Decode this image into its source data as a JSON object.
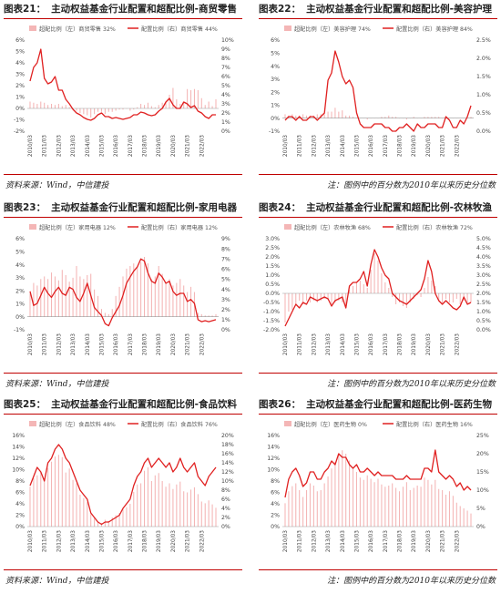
{
  "source_text": "资料来源：Wind，中信建投",
  "note_text": "注：图例中的百分数为2010年以来历史分位数",
  "figures": [
    {
      "label": "图表21：",
      "title": "主动权益基金行业配置和超配比例-商贸零售",
      "source_kind": "source"
    },
    {
      "label": "图表22：",
      "title": "主动权益基金行业配置和超配比例-美容护理",
      "source_kind": "note"
    },
    {
      "label": "图表23：",
      "title": "主动权益基金行业配置和超配比例-家用电器",
      "source_kind": "source"
    },
    {
      "label": "图表24：",
      "title": "主动权益基金行业配置和超配比例-农林牧渔",
      "source_kind": "note"
    },
    {
      "label": "图表25：",
      "title": "主动权益基金行业配置和超配比例-食品饮料",
      "source_kind": "source"
    },
    {
      "label": "图表26：",
      "title": "主动权益基金行业配置和超配比例-医药生物",
      "source_kind": "note"
    }
  ],
  "colors": {
    "bar": "#f4b6b6",
    "line": "#e02020",
    "rule": "#c00000"
  },
  "chart_data": [
    {
      "type": "bar+line",
      "x_ticks": [
        "2010/03",
        "2011/03",
        "2012/03",
        "2013/03",
        "2014/03",
        "2015/03",
        "2016/03",
        "2017/03",
        "2018/03",
        "2019/03",
        "2020/03",
        "2021/03",
        "2022/03"
      ],
      "x_start": 2010.0,
      "x_step": 0.25,
      "series": [
        {
          "name": "超配比例（左）商贸零售 32%",
          "axis": "left",
          "type": "bar",
          "values": [
            0.6,
            0.5,
            0.4,
            0.6,
            0.5,
            0.3,
            0.4,
            0.3,
            0.4,
            0.2,
            0.3,
            0.1,
            -0.1,
            -0.2,
            -0.4,
            -0.5,
            -0.6,
            -0.8,
            -0.5,
            -0.3,
            -0.3,
            -0.5,
            -0.3,
            -0.3,
            -0.2,
            -0.1,
            -0.1,
            0,
            -0.2,
            -0.1,
            0.1,
            0.4,
            0.3,
            0.5,
            0.2,
            0.1,
            0.3,
            0.5,
            0.6,
            1.2,
            1.8,
            0.8,
            0.4,
            0.6,
            1.7,
            1.6,
            1.7,
            1.6,
            0.9,
            0.3,
            0.6,
            0.2,
            0.8
          ]
        },
        {
          "name": "配置比例（右）商贸零售 44%",
          "axis": "right",
          "type": "line",
          "values": [
            5.5,
            7.0,
            7.5,
            9.0,
            5.8,
            5.2,
            5.4,
            6.0,
            4.5,
            4.5,
            3.5,
            3.0,
            2.4,
            2.0,
            1.8,
            1.5,
            1.3,
            1.2,
            1.4,
            1.8,
            2.0,
            1.6,
            1.6,
            1.4,
            1.5,
            1.4,
            1.3,
            1.4,
            1.5,
            1.8,
            1.8,
            2.1,
            2.0,
            1.8,
            1.7,
            1.8,
            2.2,
            2.5,
            3.2,
            3.6,
            2.9,
            2.5,
            2.5,
            3.2,
            3.0,
            2.6,
            2.8,
            2.2,
            2.0,
            1.6,
            1.4,
            1.8,
            1.8
          ]
        }
      ],
      "left_axis": {
        "min": -2,
        "max": 6,
        "step": 1,
        "suffix": "%"
      },
      "right_axis": {
        "min": 0,
        "max": 10,
        "step": 1,
        "suffix": "%"
      }
    },
    {
      "type": "bar+line",
      "x_ticks": [
        "2010/03",
        "2011/03",
        "2012/03",
        "2013/03",
        "2014/03",
        "2015/03",
        "2016/03",
        "2017/03",
        "2018/03",
        "2019/03",
        "2020/03",
        "2021/03",
        "2022/03"
      ],
      "x_start": 2010.0,
      "x_step": 0.25,
      "series": [
        {
          "name": "超配比例（左）美容护理 74%",
          "axis": "left",
          "type": "bar",
          "values": [
            0.3,
            0.2,
            0.3,
            0.2,
            0.2,
            0.3,
            0.2,
            0.2,
            0.2,
            0.3,
            0.3,
            0.3,
            0.5,
            0.5,
            0.8,
            0.5,
            0.6,
            0.2,
            0.2,
            0.1,
            0,
            0,
            0,
            -0.1,
            0,
            0,
            0,
            0.1,
            0.1,
            0.2,
            0.1,
            0.1,
            0,
            0,
            -0.1,
            0,
            0.1,
            0,
            0,
            0.1,
            0.1,
            0.1,
            0.1,
            0.1,
            0,
            0,
            0,
            0,
            0,
            0,
            0,
            0,
            0.1
          ]
        },
        {
          "name": "配置比例（右）美容护理 84%",
          "axis": "right",
          "type": "line",
          "values": [
            0.3,
            0.4,
            0.4,
            0.3,
            0.4,
            0.3,
            0.3,
            0.4,
            0.4,
            0.3,
            0.4,
            0.5,
            1.4,
            1.6,
            2.2,
            1.9,
            1.5,
            1.3,
            1.4,
            1.2,
            0.5,
            0.2,
            0.1,
            0.1,
            0.1,
            0.2,
            0.2,
            0.2,
            0.1,
            0.1,
            0,
            0,
            0.1,
            0.1,
            0.2,
            0.1,
            0,
            0.2,
            0.1,
            0.1,
            0.2,
            0.2,
            0.2,
            0.1,
            0.1,
            0.4,
            0.3,
            0.1,
            0.1,
            0.3,
            0.2,
            0.4,
            0.7
          ]
        }
      ],
      "left_axis": {
        "min": -1,
        "max": 6,
        "step": 1,
        "suffix": "%"
      },
      "right_axis": {
        "min": 0,
        "max": 2.5,
        "step": 0.5,
        "suffix": "%"
      }
    },
    {
      "type": "bar+line",
      "x_ticks": [
        "2010/03",
        "2011/03",
        "2012/03",
        "2013/03",
        "2014/03",
        "2015/03",
        "2016/03",
        "2017/03",
        "2018/03",
        "2019/03",
        "2020/03",
        "2021/03",
        "2022/03"
      ],
      "x_start": 2010.0,
      "x_step": 0.25,
      "series": [
        {
          "name": "超配比例（左）家用电器 12%",
          "axis": "left",
          "type": "bar",
          "values": [
            1.8,
            2.6,
            2.4,
            2.9,
            3.1,
            2.9,
            3.4,
            3.1,
            2.8,
            3.6,
            3.2,
            2.7,
            3.0,
            3.9,
            3.1,
            2.9,
            3.2,
            3.3,
            2.1,
            1.6,
            0.6,
            0.3,
            0.2,
            0.6,
            1.6,
            2.3,
            3.1,
            3.7,
            3.9,
            4.1,
            3.8,
            4.2,
            4.6,
            4.1,
            2.9,
            3.1,
            3.9,
            3.3,
            2.6,
            2.9,
            2.4,
            2.6,
            2.9,
            2.4,
            1.9,
            2.3,
            1.9,
            0.3,
            0.2,
            0.1,
            0.1,
            0.1,
            0.2
          ]
        },
        {
          "name": "配置比例（右）家用电器 12%",
          "axis": "right",
          "type": "line",
          "values": [
            3.8,
            2.4,
            2.6,
            3.4,
            4.2,
            3.6,
            3.2,
            3.8,
            4.2,
            3.6,
            3.4,
            4.2,
            4.0,
            3.2,
            2.8,
            3.6,
            4.6,
            3.4,
            2.2,
            1.8,
            1.4,
            0.6,
            0.4,
            1.2,
            1.8,
            2.4,
            3.4,
            4.6,
            5.2,
            5.8,
            6.2,
            7.0,
            6.8,
            5.6,
            4.8,
            4.6,
            5.6,
            5.2,
            4.6,
            4.8,
            3.8,
            3.4,
            3.6,
            3.6,
            2.8,
            3.0,
            2.6,
            1.0,
            0.8,
            0.9,
            0.8,
            0.9,
            1.0
          ]
        }
      ],
      "left_axis": {
        "min": -1,
        "max": 6,
        "step": 1,
        "suffix": "%"
      },
      "right_axis": {
        "min": 0,
        "max": 9,
        "step": 1,
        "suffix": "%"
      }
    },
    {
      "type": "bar+line",
      "x_ticks": [
        "2010/03",
        "2011/03",
        "2012/03",
        "2013/03",
        "2014/03",
        "2015/03",
        "2016/03",
        "2017/03",
        "2018/03",
        "2019/03",
        "2020/03",
        "2021/03",
        "2022/03"
      ],
      "x_start": 2010.0,
      "x_step": 0.25,
      "series": [
        {
          "name": "超配比例（左）农林牧渔 68%",
          "axis": "left",
          "type": "bar",
          "values": [
            -1.6,
            -1.0,
            -0.9,
            -0.6,
            -0.4,
            -0.6,
            -0.4,
            -0.5,
            -0.4,
            -0.5,
            -0.4,
            -0.3,
            -0.3,
            -0.6,
            -0.5,
            -0.4,
            -0.5,
            -0.8,
            0.2,
            0.4,
            0.6,
            0.7,
            0.5,
            0.3,
            1.3,
            2.2,
            1.8,
            1.1,
            0.6,
            0.3,
            -0.2,
            -0.6,
            -0.5,
            -0.7,
            -0.8,
            -0.5,
            -0.3,
            -0.1,
            -0.2,
            0.3,
            0.9,
            0.7,
            0.4,
            -0.4,
            -0.6,
            -0.3,
            -0.5,
            -0.5,
            -0.3,
            -0.6,
            -0.4,
            -0.6,
            -0.5
          ]
        },
        {
          "name": "配置比例（右）农林牧渔 72%",
          "axis": "right",
          "type": "line",
          "values": [
            0.2,
            0.6,
            1.0,
            1.4,
            1.2,
            1.5,
            1.4,
            1.8,
            1.7,
            1.6,
            1.7,
            1.8,
            1.7,
            1.3,
            1.6,
            1.7,
            1.8,
            1.2,
            2.4,
            2.6,
            2.6,
            2.8,
            3.2,
            2.4,
            3.6,
            4.4,
            4.0,
            3.4,
            3.0,
            2.8,
            2.0,
            1.8,
            1.6,
            1.5,
            1.4,
            1.6,
            1.8,
            2.0,
            2.2,
            2.8,
            3.8,
            3.2,
            2.0,
            1.6,
            1.4,
            1.6,
            1.4,
            1.2,
            1.1,
            1.3,
            1.8,
            1.4,
            1.5
          ]
        }
      ],
      "left_axis": {
        "min": -2,
        "max": 3,
        "step": 0.5,
        "suffix": "%"
      },
      "right_axis": {
        "min": 0,
        "max": 5,
        "step": 0.5,
        "suffix": "%"
      }
    },
    {
      "type": "bar+line",
      "x_ticks": [
        "2010/03",
        "2011/03",
        "2012/03",
        "2013/03",
        "2014/03",
        "2015/03",
        "2016/03",
        "2017/03",
        "2018/03",
        "2019/03",
        "2020/03",
        "2021/03",
        "2022/03"
      ],
      "x_start": 2010.0,
      "x_step": 0.25,
      "series": [
        {
          "name": "超配比例（左）食品饮料 48%",
          "axis": "left",
          "type": "bar",
          "values": [
            7.0,
            8.5,
            9.0,
            9.5,
            8.4,
            10.3,
            11.4,
            12.3,
            12.6,
            12.2,
            9.5,
            10.2,
            8.2,
            7.6,
            5.6,
            5.0,
            4.3,
            2.2,
            1.5,
            0.9,
            0.6,
            1.2,
            1.0,
            1.6,
            2.0,
            2.4,
            3.2,
            3.4,
            4.0,
            6.1,
            7.4,
            7.6,
            9.8,
            10.4,
            8.0,
            9.0,
            9.4,
            8.0,
            7.0,
            7.6,
            6.6,
            7.4,
            7.9,
            6.2,
            6.0,
            6.5,
            6.9,
            5.7,
            4.4,
            4.1,
            4.6,
            3.9,
            3.3
          ]
        },
        {
          "name": "配置比例（右）食品饮料 76%",
          "axis": "right",
          "type": "line",
          "values": [
            9.0,
            11.0,
            13.0,
            12.0,
            10.0,
            14.0,
            15.0,
            17.0,
            18.0,
            17.0,
            15.0,
            14.0,
            12.0,
            10.0,
            8.0,
            7.0,
            6.0,
            3.0,
            2.0,
            1.0,
            0.5,
            1.0,
            1.0,
            1.5,
            2.0,
            2.5,
            4.0,
            5.0,
            6.0,
            9.0,
            11.0,
            12.0,
            14.0,
            15.0,
            13.0,
            14.0,
            15.0,
            14.0,
            13.0,
            14.0,
            12.0,
            13.0,
            15.0,
            13.0,
            12.0,
            13.0,
            14.0,
            11.0,
            10.0,
            9.0,
            11.0,
            12.0,
            13.0
          ]
        }
      ],
      "left_axis": {
        "min": 0,
        "max": 16,
        "step": 2,
        "suffix": "%"
      },
      "right_axis": {
        "min": 0,
        "max": 20,
        "step": 2,
        "suffix": "%"
      }
    },
    {
      "type": "bar+line",
      "x_ticks": [
        "2010/03",
        "2011/03",
        "2012/03",
        "2013/03",
        "2014/03",
        "2015/03",
        "2016/03",
        "2017/03",
        "2018/03",
        "2019/03",
        "2020/03",
        "2021/03",
        "2022/03"
      ],
      "x_start": 2010.0,
      "x_step": 0.25,
      "series": [
        {
          "name": "超配比例（左）医药生物 0%",
          "axis": "left",
          "type": "bar",
          "values": [
            4.1,
            6.2,
            7.1,
            7.6,
            6.4,
            5.2,
            6.4,
            7.6,
            7.2,
            6.2,
            6.4,
            7.6,
            8.8,
            10.2,
            11.4,
            12.6,
            13.4,
            12.8,
            11.6,
            10.4,
            9.6,
            8.6,
            8.2,
            9.0,
            8.4,
            7.8,
            8.4,
            7.4,
            7.0,
            7.2,
            7.6,
            6.8,
            6.2,
            7.0,
            7.8,
            6.4,
            6.8,
            7.2,
            7.0,
            8.6,
            8.2,
            7.4,
            8.2,
            6.6,
            6.4,
            5.6,
            6.2,
            5.4,
            4.2,
            3.6,
            3.2,
            2.8,
            2.3
          ]
        },
        {
          "name": "配置比例（右）医药生物 16%",
          "axis": "right",
          "type": "line",
          "values": [
            8.0,
            13.0,
            15.0,
            16.0,
            14.0,
            11.0,
            12.0,
            15.0,
            15.0,
            13.0,
            13.0,
            15.0,
            16.0,
            18.0,
            17.0,
            20.0,
            19.0,
            19.0,
            17.0,
            16.0,
            17.0,
            15.0,
            15.0,
            16.0,
            15.0,
            14.0,
            15.0,
            14.0,
            14.0,
            14.0,
            14.0,
            13.0,
            13.0,
            13.0,
            14.0,
            13.0,
            13.0,
            13.0,
            13.0,
            16.0,
            16.0,
            15.0,
            21.0,
            15.0,
            14.0,
            13.0,
            14.0,
            13.0,
            11.0,
            12.0,
            10.0,
            11.0,
            10.0
          ]
        }
      ],
      "left_axis": {
        "min": 0,
        "max": 16,
        "step": 2,
        "suffix": "%"
      },
      "right_axis": {
        "min": 0,
        "max": 25,
        "step": 5,
        "suffix": "%"
      }
    }
  ]
}
